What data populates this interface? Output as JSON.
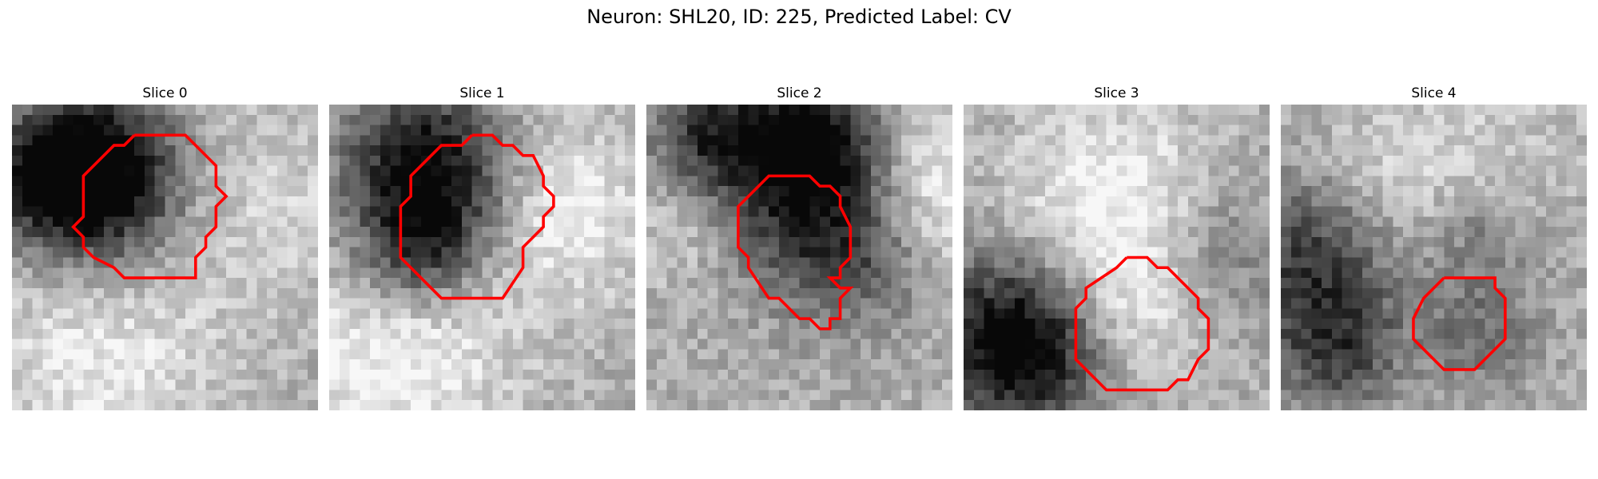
{
  "figure": {
    "title": "Neuron: SHL20, ID: 225, Predicted Label: CV"
  },
  "panels": [
    {
      "title": "Slice 0"
    },
    {
      "title": "Slice 1"
    },
    {
      "title": "Slice 2"
    },
    {
      "title": "Slice 3"
    },
    {
      "title": "Slice 4"
    }
  ],
  "colors": {
    "contour": "#ff0000",
    "background": "#ffffff"
  }
}
